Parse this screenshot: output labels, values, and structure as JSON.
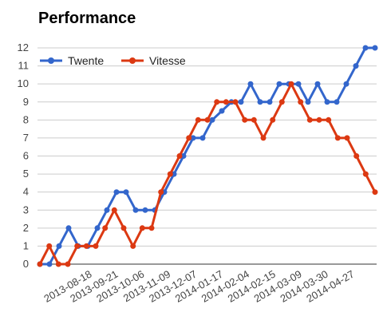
{
  "chart_data": {
    "type": "line",
    "title": "Performance",
    "xlabel": "",
    "ylabel": "",
    "ylim": [
      0,
      12
    ],
    "yticks": [
      "0",
      "1",
      "2",
      "3",
      "4",
      "5",
      "6",
      "7",
      "8",
      "9",
      "10",
      "11",
      "12"
    ],
    "grid": true,
    "legend_position": "top-left",
    "x_ticks": [
      "2013-08-18",
      "2013-09-21",
      "2013-10-06",
      "2013-11-09",
      "2013-12-07",
      "2014-01-17",
      "2014-02-04",
      "2014-02-15",
      "2014-03-09",
      "2014-03-30",
      "2014-04-27"
    ],
    "series": [
      {
        "name": "Twente",
        "color": "#3366cc",
        "values": [
          0,
          0,
          1,
          2,
          1,
          1,
          2,
          3,
          4,
          4,
          3,
          3,
          3,
          4,
          5,
          6,
          7,
          7,
          8,
          8.5,
          9,
          9,
          10,
          9,
          9,
          10,
          10,
          10,
          9,
          10,
          9,
          9,
          10,
          11,
          12,
          12
        ]
      },
      {
        "name": "Vitesse",
        "color": "#dc3912",
        "values": [
          0,
          1,
          0,
          0,
          1,
          1,
          1,
          2,
          3,
          2,
          1,
          2,
          2,
          4,
          5,
          6,
          7,
          8,
          8,
          9,
          9,
          9,
          8,
          8,
          7,
          8,
          9,
          10,
          9,
          8,
          8,
          8,
          7,
          7,
          6,
          5,
          4
        ]
      }
    ]
  }
}
